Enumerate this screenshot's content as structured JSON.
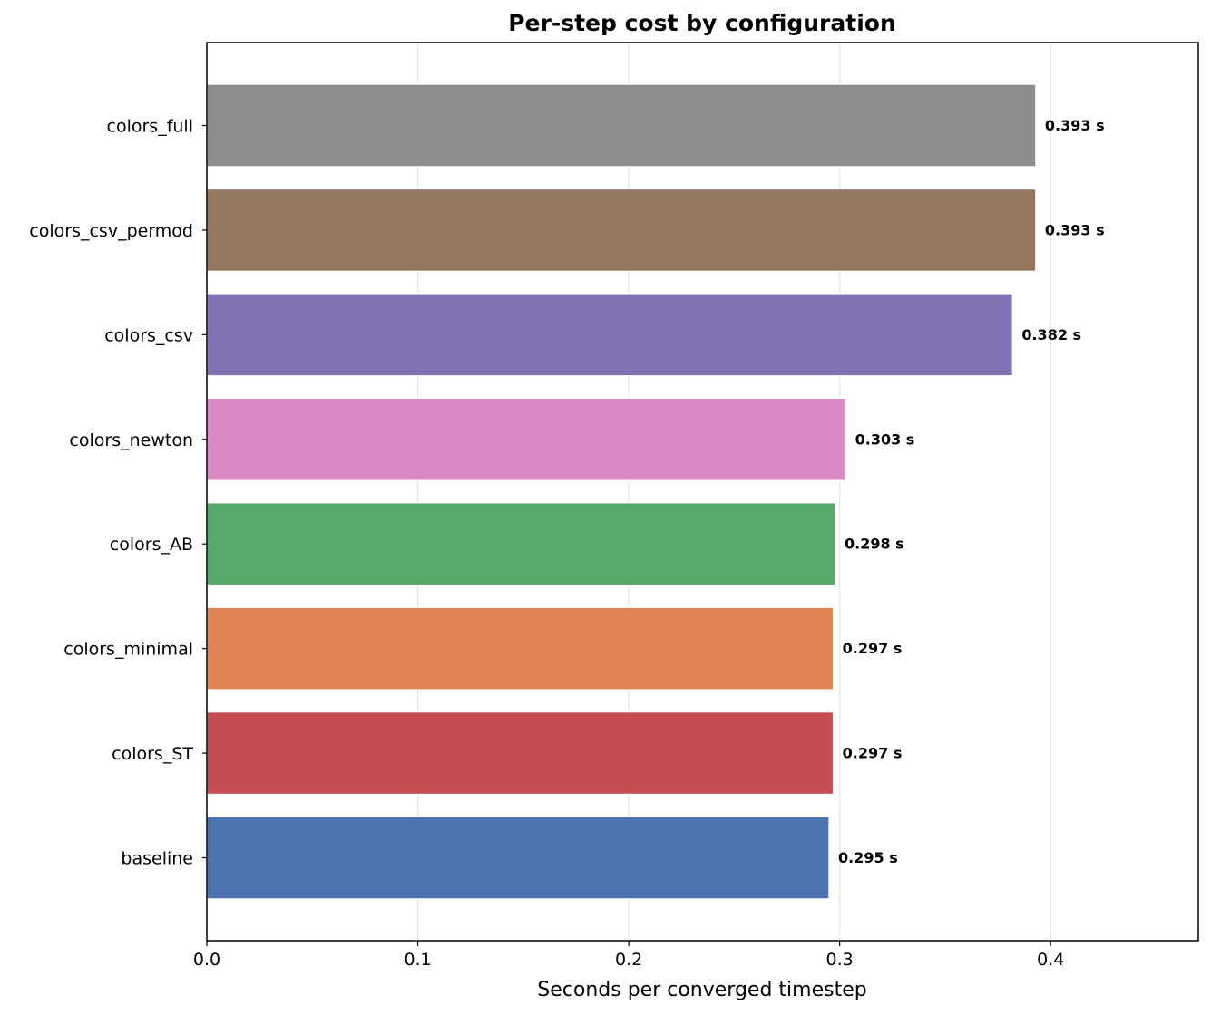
{
  "chart_data": {
    "type": "bar",
    "orientation": "horizontal",
    "title": "Per-step cost by configuration",
    "xlabel": "Seconds per converged timestep",
    "ylabel": "",
    "xlim": [
      0.0,
      0.47
    ],
    "xticks": [
      0.0,
      0.1,
      0.2,
      0.3,
      0.4
    ],
    "xtick_labels": [
      "0.0",
      "0.1",
      "0.2",
      "0.3",
      "0.4"
    ],
    "grid": "vertical",
    "categories": [
      "colors_full",
      "colors_csv_permod",
      "colors_csv",
      "colors_newton",
      "colors_AB",
      "colors_minimal",
      "colors_ST",
      "baseline"
    ],
    "values": [
      0.393,
      0.393,
      0.382,
      0.303,
      0.298,
      0.297,
      0.297,
      0.295
    ],
    "value_labels": [
      "0.393 s",
      "0.393 s",
      "0.382 s",
      "0.303 s",
      "0.298 s",
      "0.297 s",
      "0.297 s",
      "0.295 s"
    ],
    "colors": [
      "#8c8c8c",
      "#937860",
      "#8172b3",
      "#da8bc3",
      "#55a868",
      "#dd8452",
      "#c44e52",
      "#4c72b0"
    ]
  }
}
